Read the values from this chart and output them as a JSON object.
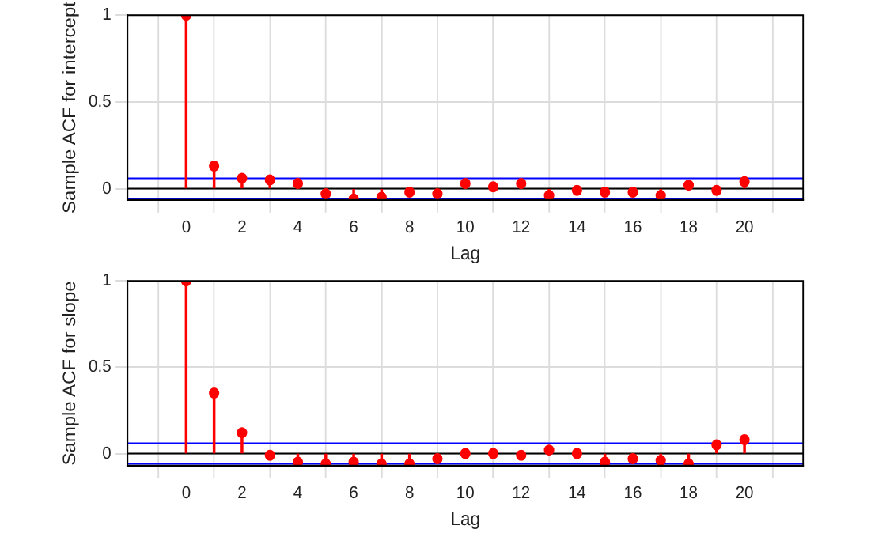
{
  "chart_data": [
    {
      "type": "lollipop",
      "ylabel": "Sample ACF for intercept",
      "xlabel": "Lag",
      "x": [
        0,
        1,
        2,
        3,
        4,
        5,
        6,
        7,
        8,
        9,
        10,
        11,
        12,
        13,
        14,
        15,
        16,
        17,
        18,
        19,
        20
      ],
      "series": [
        {
          "color": "#ff0000",
          "values": [
            1,
            0.13,
            0.06,
            0.05,
            0.03,
            -0.03,
            -0.06,
            -0.05,
            -0.02,
            -0.03,
            0.03,
            0.01,
            0.03,
            -0.04,
            -0.01,
            -0.02,
            -0.02,
            -0.04,
            0.02,
            -0.01,
            0.04
          ]
        }
      ],
      "marker": "circle",
      "xlim": [
        -1,
        21
      ],
      "xticks": [
        0,
        2,
        4,
        6,
        8,
        10,
        12,
        14,
        16,
        18,
        20
      ],
      "ylim": [
        -0.065,
        1
      ],
      "yticks": [
        0,
        0.5,
        1
      ],
      "grid": true,
      "ref_lines": [
        {
          "axis": "y",
          "value": 0.06,
          "color": "#0000ff"
        },
        {
          "axis": "y",
          "value": -0.06,
          "color": "#0000ff"
        },
        {
          "axis": "y",
          "value": 0,
          "color": "#000000"
        }
      ]
    },
    {
      "type": "lollipop",
      "ylabel": "Sample ACF for slope",
      "xlabel": "Lag",
      "x": [
        0,
        1,
        2,
        3,
        4,
        5,
        6,
        7,
        8,
        9,
        10,
        11,
        12,
        13,
        14,
        15,
        16,
        17,
        18,
        19,
        20
      ],
      "series": [
        {
          "color": "#ff0000",
          "values": [
            1,
            0.35,
            0.12,
            -0.01,
            -0.05,
            -0.06,
            -0.05,
            -0.06,
            -0.06,
            -0.03,
            0,
            0,
            -0.01,
            0.02,
            0,
            -0.05,
            -0.03,
            -0.04,
            -0.06,
            0.05,
            0.08
          ]
        }
      ],
      "marker": "circle",
      "xlim": [
        -1,
        21
      ],
      "xticks": [
        0,
        2,
        4,
        6,
        8,
        10,
        12,
        14,
        16,
        18,
        20
      ],
      "ylim": [
        -0.07,
        1
      ],
      "yticks": [
        0,
        0.5,
        1
      ],
      "grid": true,
      "ref_lines": [
        {
          "axis": "y",
          "value": 0.06,
          "color": "#0000ff"
        },
        {
          "axis": "y",
          "value": -0.06,
          "color": "#0000ff"
        },
        {
          "axis": "y",
          "value": 0,
          "color": "#000000"
        }
      ]
    }
  ]
}
